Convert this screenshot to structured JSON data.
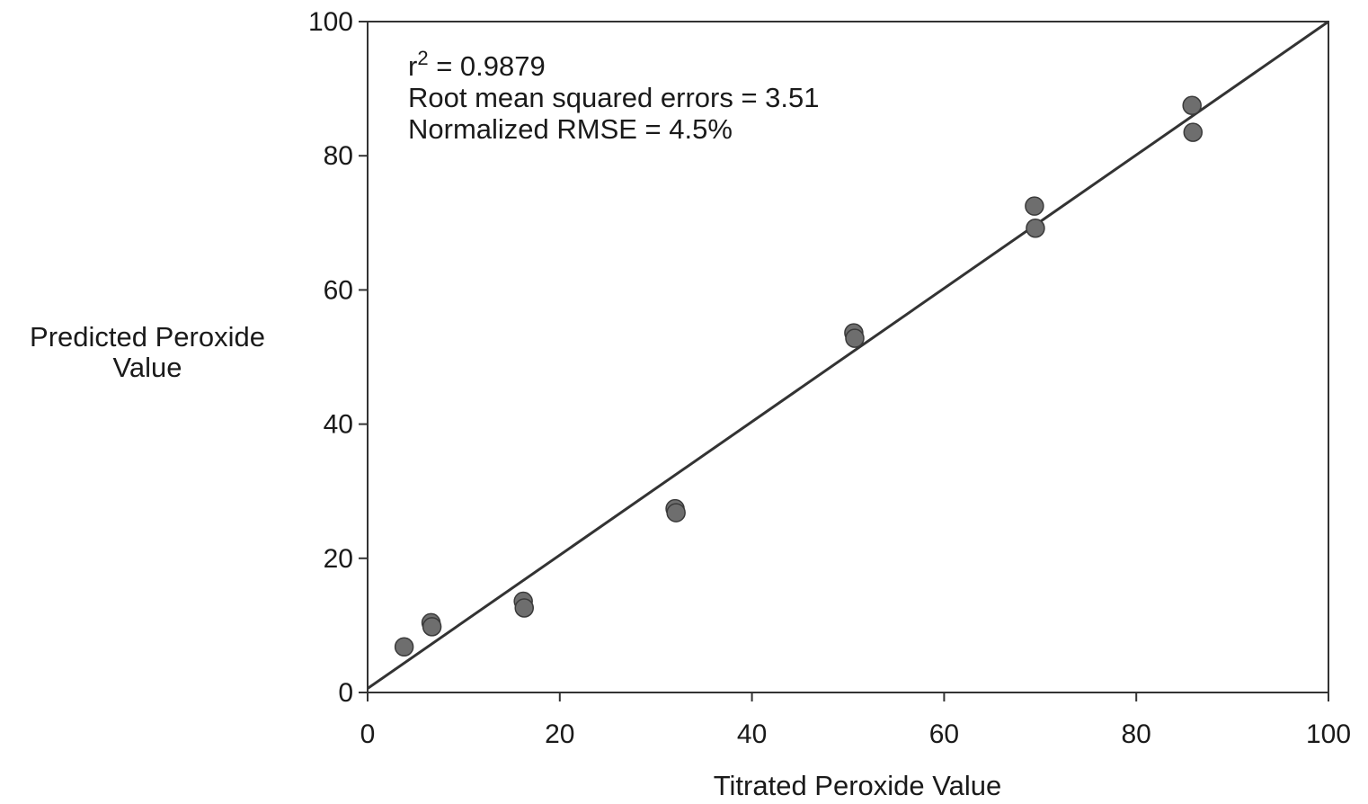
{
  "chart_data": {
    "type": "scatter",
    "title": "",
    "xlabel": "Titrated Peroxide Value",
    "ylabel_lines": [
      "Predicted Peroxide",
      "Value"
    ],
    "xlim": [
      0,
      100
    ],
    "ylim": [
      0,
      100
    ],
    "xticks": [
      0,
      20,
      40,
      60,
      80,
      100
    ],
    "yticks": [
      0,
      20,
      40,
      60,
      80,
      100
    ],
    "xtick_labels": [
      "0",
      "20",
      "40",
      "60",
      "80",
      "100"
    ],
    "ytick_labels": [
      "0",
      "20",
      "40",
      "60",
      "80",
      "100"
    ],
    "grid": false,
    "annotations": {
      "r2_prefix": "r",
      "r2_superscript": "2",
      "r2_value": " = 0.9879",
      "rmse": "Root mean squared errors = 3.51",
      "nrmse": "Normalized RMSE = 4.5%"
    },
    "points": [
      {
        "x": 3.8,
        "y": 6.8
      },
      {
        "x": 6.6,
        "y": 10.4
      },
      {
        "x": 6.7,
        "y": 9.8
      },
      {
        "x": 16.2,
        "y": 13.6
      },
      {
        "x": 16.3,
        "y": 12.6
      },
      {
        "x": 32.0,
        "y": 27.4
      },
      {
        "x": 32.1,
        "y": 26.8
      },
      {
        "x": 50.6,
        "y": 53.6
      },
      {
        "x": 50.7,
        "y": 52.8
      },
      {
        "x": 69.4,
        "y": 72.5
      },
      {
        "x": 69.5,
        "y": 69.2
      },
      {
        "x": 85.8,
        "y": 87.5
      },
      {
        "x": 85.9,
        "y": 83.5
      }
    ],
    "fit_line": {
      "x": [
        0,
        100
      ],
      "y": [
        0.6,
        100
      ]
    },
    "colors": {
      "points": "#6e6e6e",
      "point_edge": "#3a3a3a",
      "line": "#333333",
      "axes": "#333333"
    }
  }
}
